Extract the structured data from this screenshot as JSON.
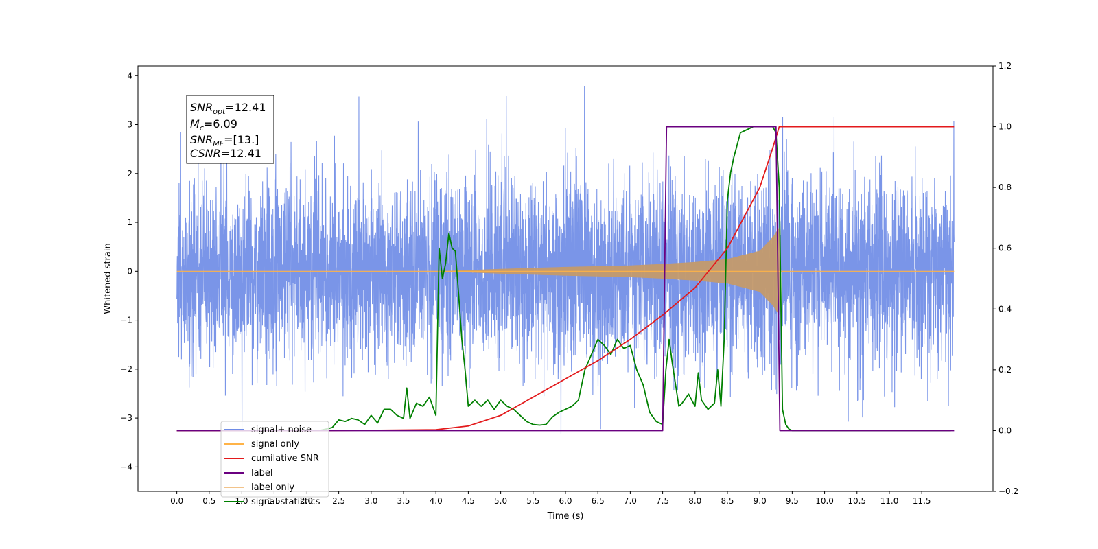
{
  "chart_data": {
    "type": "line",
    "xlabel": "Time (s)",
    "ylabel_left": "Whitened strain",
    "xlim": [
      -0.6,
      12.6
    ],
    "ylim_left": [
      -4.5,
      4.2
    ],
    "ylim_right": [
      -0.2,
      1.2
    ],
    "x_ticks": [
      0.0,
      0.5,
      1.0,
      1.5,
      2.0,
      2.5,
      3.0,
      3.5,
      4.0,
      4.5,
      5.0,
      5.5,
      6.0,
      6.5,
      7.0,
      7.5,
      8.0,
      8.5,
      9.0,
      9.5,
      10.0,
      10.5,
      11.0,
      11.5
    ],
    "x_tick_labels": [
      "0.0",
      "0.5",
      "1.0",
      "1.5",
      "2.0",
      "2.5",
      "3.0",
      "3.5",
      "4.0",
      "4.5",
      "5.0",
      "5.5",
      "6.0",
      "6.5",
      "7.0",
      "7.5",
      "8.0",
      "8.5",
      "9.0",
      "9.5",
      "10.0",
      "10.5",
      "11.0",
      "11.5"
    ],
    "y_left_ticks": [
      -4,
      -3,
      -2,
      -1,
      0,
      1,
      2,
      3,
      4
    ],
    "y_left_tick_labels": [
      "−4",
      "−3",
      "−2",
      "−1",
      "0",
      "1",
      "2",
      "3",
      "4"
    ],
    "y_right_ticks": [
      -0.2,
      0.0,
      0.2,
      0.4,
      0.6,
      0.8,
      1.0,
      1.2
    ],
    "y_right_tick_labels": [
      "−0.2",
      "0.0",
      "0.2",
      "0.4",
      "0.6",
      "0.8",
      "1.0",
      "1.2"
    ],
    "legend_position": "lower-left",
    "series": [
      {
        "name": "signal+ noise",
        "axis": "left",
        "color": "#6f8ce6",
        "x_range": [
          0.0,
          12.0
        ],
        "typical_range": [
          -1.6,
          1.9
        ],
        "max": 3.78,
        "min": -4.1
      },
      {
        "name": "signal only",
        "axis": "left",
        "color": "#ffb347",
        "fill_color": "#c49a6c",
        "x_range": [
          0.0,
          12.0
        ],
        "envelope": {
          "x": [
            0.0,
            4.0,
            5.0,
            6.0,
            7.0,
            7.5,
            8.0,
            8.5,
            9.0,
            9.2,
            9.3,
            9.32
          ],
          "amplitude": [
            0.0,
            0.0,
            0.05,
            0.09,
            0.12,
            0.15,
            0.19,
            0.25,
            0.42,
            0.7,
            0.9,
            0.0
          ]
        }
      },
      {
        "name": "cumilative SNR",
        "axis": "right",
        "color": "#e31a1c",
        "x": [
          0.0,
          2.3,
          3.0,
          4.0,
          4.5,
          5.0,
          5.5,
          6.0,
          6.5,
          7.0,
          7.5,
          8.0,
          8.5,
          9.0,
          9.2,
          9.3,
          9.31,
          12.0
        ],
        "y": [
          0.0,
          0.0,
          0.001,
          0.003,
          0.015,
          0.05,
          0.11,
          0.17,
          0.23,
          0.3,
          0.38,
          0.47,
          0.6,
          0.8,
          0.93,
          1.0,
          1.0,
          1.0
        ]
      },
      {
        "name": "label",
        "axis": "right",
        "color": "#6a0080",
        "x": [
          0.0,
          7.5,
          7.56,
          9.25,
          9.31,
          12.0
        ],
        "y": [
          0.0,
          0.0,
          1.0,
          1.0,
          0.0,
          0.0
        ]
      },
      {
        "name": "label only",
        "axis": "right",
        "color": "#f2c38a",
        "x": [],
        "y": []
      },
      {
        "name": "signal statistics",
        "axis": "right",
        "color": "#008000",
        "x": [
          0.0,
          2.2,
          2.3,
          2.4,
          2.5,
          2.6,
          2.7,
          2.8,
          2.9,
          3.0,
          3.1,
          3.2,
          3.3,
          3.4,
          3.5,
          3.55,
          3.6,
          3.7,
          3.8,
          3.9,
          3.95,
          4.0,
          4.05,
          4.1,
          4.15,
          4.2,
          4.25,
          4.3,
          4.35,
          4.4,
          4.45,
          4.5,
          4.6,
          4.7,
          4.8,
          4.9,
          5.0,
          5.1,
          5.2,
          5.3,
          5.4,
          5.5,
          5.6,
          5.7,
          5.8,
          5.9,
          6.0,
          6.1,
          6.2,
          6.3,
          6.4,
          6.5,
          6.6,
          6.7,
          6.8,
          6.9,
          7.0,
          7.1,
          7.2,
          7.3,
          7.4,
          7.5,
          7.55,
          7.6,
          7.65,
          7.7,
          7.75,
          7.8,
          7.9,
          8.0,
          8.05,
          8.1,
          8.2,
          8.3,
          8.35,
          8.4,
          8.45,
          8.5,
          8.55,
          8.6,
          8.7,
          8.8,
          8.9,
          9.0,
          9.1,
          9.2,
          9.25,
          9.3,
          9.35,
          9.4,
          9.45,
          9.5,
          10.0,
          11.0,
          11.95
        ],
        "y": [
          0.0,
          0.0,
          0.005,
          0.01,
          0.035,
          0.03,
          0.04,
          0.035,
          0.02,
          0.05,
          0.025,
          0.07,
          0.07,
          0.05,
          0.04,
          0.14,
          0.04,
          0.09,
          0.08,
          0.11,
          0.08,
          0.05,
          0.6,
          0.5,
          0.55,
          0.65,
          0.6,
          0.59,
          0.45,
          0.3,
          0.2,
          0.08,
          0.1,
          0.08,
          0.1,
          0.07,
          0.1,
          0.08,
          0.07,
          0.05,
          0.03,
          0.02,
          0.018,
          0.02,
          0.045,
          0.06,
          0.07,
          0.08,
          0.1,
          0.2,
          0.25,
          0.3,
          0.28,
          0.25,
          0.3,
          0.27,
          0.28,
          0.2,
          0.15,
          0.06,
          0.03,
          0.02,
          0.2,
          0.3,
          0.22,
          0.15,
          0.08,
          0.09,
          0.12,
          0.08,
          0.19,
          0.1,
          0.07,
          0.09,
          0.2,
          0.08,
          0.3,
          0.76,
          0.85,
          0.9,
          0.98,
          0.99,
          1.0,
          1.0,
          1.0,
          1.0,
          0.98,
          0.8,
          0.07,
          0.02,
          0.005,
          0.0,
          0.0,
          0.0,
          0.0
        ]
      }
    ]
  },
  "info_box": {
    "line1": {
      "main": "SNR",
      "sub": "opt",
      "value": "=12.41"
    },
    "line2": {
      "main": "M",
      "sub": "c",
      "value": "=6.09"
    },
    "line3": {
      "main": "SNR",
      "sub": "MF",
      "value": "=[13.]"
    },
    "line4": {
      "main": "CSNR",
      "sub": "",
      "value": "=12.41"
    }
  }
}
